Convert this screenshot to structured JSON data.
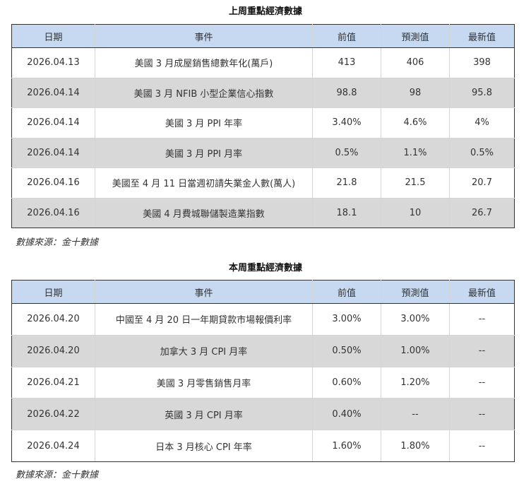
{
  "last_week": {
    "title": "上周重點經濟數據",
    "headers": [
      "日期",
      "事件",
      "前值",
      "預測值",
      "最新值"
    ],
    "rows": [
      [
        "2026.04.13",
        "美國 3 月成屋銷售總數年化(萬戶)",
        "413",
        "406",
        "398"
      ],
      [
        "2026.04.14",
        "美國 3 月 NFIB 小型企業信心指數",
        "98.8",
        "98",
        "95.8"
      ],
      [
        "2026.04.14",
        "美國 3 月 PPI 年率",
        "3.40%",
        "4.6%",
        "4%"
      ],
      [
        "2026.04.14",
        "美國 3 月 PPI 月率",
        "0.5%",
        "1.1%",
        "0.5%"
      ],
      [
        "2026.04.16",
        "美國至 4 月 11 日當週初請失業金人數(萬人)",
        "21.8",
        "21.5",
        "20.7"
      ],
      [
        "2026.04.16",
        "美國 4 月費城聯儲製造業指數",
        "18.1",
        "10",
        "26.7"
      ]
    ],
    "source": "數據來源：金十數據"
  },
  "this_week": {
    "title": "本周重點經濟數據",
    "headers": [
      "日期",
      "事件",
      "前值",
      "預測值",
      "最新值"
    ],
    "rows": [
      [
        "2026.04.20",
        "中國至 4 月 20 日一年期貸款市場報價利率",
        "3.00%",
        "3.00%",
        "--"
      ],
      [
        "2026.04.20",
        "加拿大 3 月 CPI 月率",
        "0.50%",
        "1.00%",
        "--"
      ],
      [
        "2026.04.21",
        "美國 3 月零售銷售月率",
        "0.60%",
        "1.20%",
        "--"
      ],
      [
        "2026.04.22",
        "英國 3 月 CPI 月率",
        "0.40%",
        "--",
        "--"
      ],
      [
        "2026.04.24",
        "日本 3 月核心 CPI 年率",
        "1.60%",
        "1.80%",
        "--"
      ]
    ],
    "source": "數據來源：金十數據"
  }
}
